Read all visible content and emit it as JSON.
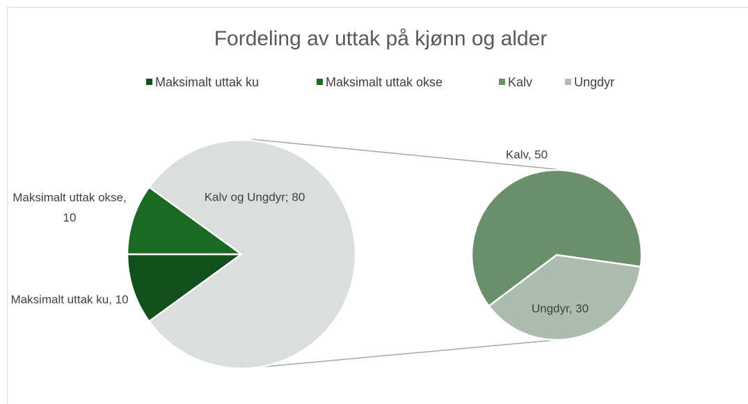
{
  "chart_data": {
    "type": "pie-of-pie",
    "title": "Fordeling av uttak på kjønn og alder",
    "categories": [
      "Maksimalt uttak ku",
      "Maksimalt uttak okse",
      "Kalv",
      "Ungdyr"
    ],
    "values": [
      10,
      10,
      50,
      30
    ],
    "colors": [
      "#134f1c",
      "#1b6a24",
      "#6b8e6b",
      "#adbdad"
    ],
    "value_labels": [
      "Maksimalt uttak ku, 10",
      "Maksimalt uttak okse, 10",
      "Kalv, 50",
      "Ungdyr, 30"
    ],
    "split": 2,
    "other": {
      "label": "Kalv og Ungdyr; 80",
      "value": 80,
      "color": "#d9e0dc"
    },
    "legend": "top"
  }
}
